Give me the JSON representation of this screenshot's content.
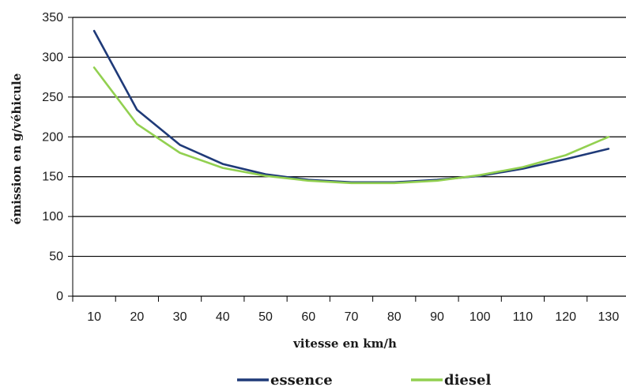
{
  "chart_data": {
    "type": "line",
    "xlabel": "vitesse en km/h",
    "ylabel": "émission en g/véhicule",
    "categories": [
      "10",
      "20",
      "30",
      "40",
      "50",
      "60",
      "70",
      "80",
      "90",
      "100",
      "110",
      "120",
      "130"
    ],
    "ylim": [
      0,
      350
    ],
    "yticks": [
      0,
      50,
      100,
      150,
      200,
      250,
      300,
      350
    ],
    "grid": true,
    "legend": "bottom",
    "series": [
      {
        "name": "essence",
        "color": "#1f3a78",
        "values": [
          333,
          234,
          190,
          166,
          153,
          146,
          143,
          143,
          146,
          151,
          160,
          172,
          185
        ]
      },
      {
        "name": "diesel",
        "color": "#92d050",
        "values": [
          287,
          216,
          180,
          161,
          151,
          145,
          142,
          142,
          145,
          152,
          162,
          177,
          200
        ]
      }
    ]
  }
}
